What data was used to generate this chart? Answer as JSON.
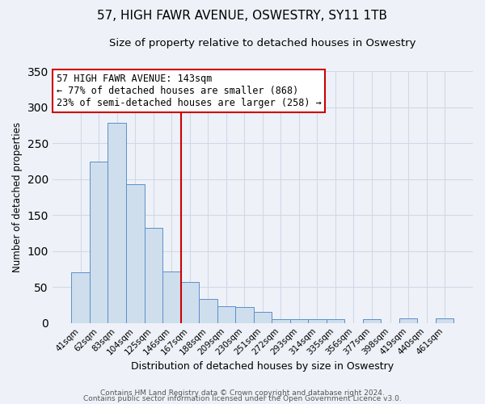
{
  "title": "57, HIGH FAWR AVENUE, OSWESTRY, SY11 1TB",
  "subtitle": "Size of property relative to detached houses in Oswestry",
  "xlabel": "Distribution of detached houses by size in Oswestry",
  "ylabel": "Number of detached properties",
  "bar_labels": [
    "41sqm",
    "62sqm",
    "83sqm",
    "104sqm",
    "125sqm",
    "146sqm",
    "167sqm",
    "188sqm",
    "209sqm",
    "230sqm",
    "251sqm",
    "272sqm",
    "293sqm",
    "314sqm",
    "335sqm",
    "356sqm",
    "377sqm",
    "398sqm",
    "419sqm",
    "440sqm",
    "461sqm"
  ],
  "bar_values": [
    70,
    224,
    278,
    193,
    132,
    72,
    57,
    33,
    23,
    22,
    15,
    5,
    5,
    5,
    5,
    0,
    5,
    0,
    6,
    0,
    6
  ],
  "bar_color": "#cfdeed",
  "bar_edge_color": "#5b8fc9",
  "vline_x": 5.5,
  "vline_color": "#cc0000",
  "annotation_title": "57 HIGH FAWR AVENUE: 143sqm",
  "annotation_line1": "← 77% of detached houses are smaller (868)",
  "annotation_line2": "23% of semi-detached houses are larger (258) →",
  "annotation_box_color": "#ffffff",
  "annotation_box_edge": "#cc0000",
  "ylim": [
    0,
    350
  ],
  "footer1": "Contains HM Land Registry data © Crown copyright and database right 2024.",
  "footer2": "Contains public sector information licensed under the Open Government Licence v3.0.",
  "background_color": "#eef2f8",
  "grid_color": "#d0d8e8"
}
